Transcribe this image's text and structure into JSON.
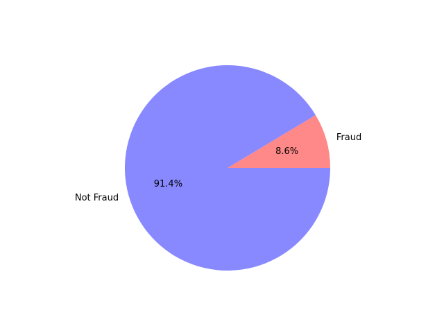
{
  "chart_data": {
    "type": "pie",
    "title": "",
    "slices": [
      {
        "label": "Fraud",
        "value": 8.6,
        "pct_label": "8.6%",
        "color": "#ff8888"
      },
      {
        "label": "Not Fraud",
        "value": 91.4,
        "pct_label": "91.4%",
        "color": "#8888ff"
      }
    ],
    "start_angle_deg": 0,
    "direction": "counterclockwise",
    "legend": "none"
  }
}
